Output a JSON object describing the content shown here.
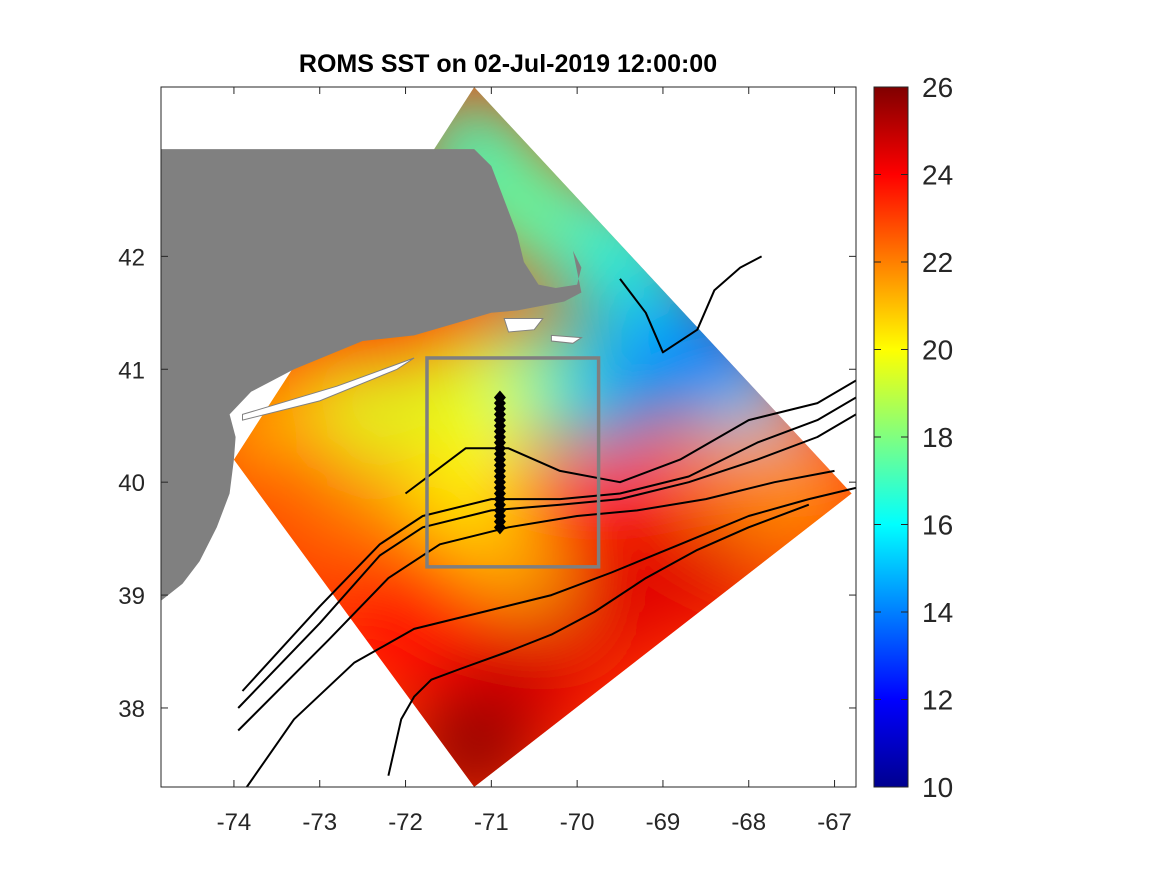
{
  "chart_data": {
    "type": "heatmap",
    "title": "ROMS SST on 02-Jul-2019 12:00:00",
    "xlabel": "",
    "ylabel": "",
    "xlim": [
      -74.85,
      -66.75
    ],
    "ylim": [
      37.3,
      43.5
    ],
    "x_ticks": [
      -74,
      -73,
      -72,
      -71,
      -70,
      -69,
      -68,
      -67
    ],
    "y_ticks": [
      38,
      39,
      40,
      41,
      42
    ],
    "colorbar": {
      "ticks": [
        10,
        12,
        14,
        16,
        18,
        20,
        22,
        24,
        26
      ],
      "range": [
        10,
        26
      ],
      "colormap": "jet"
    },
    "domain_corners": [
      [
        -74.0,
        40.2
      ],
      [
        -71.2,
        43.5
      ],
      [
        -66.8,
        39.9
      ],
      [
        -71.2,
        37.3
      ]
    ],
    "sst_samples": [
      {
        "lon": -71.2,
        "lat": 42.9,
        "sst": 17
      },
      {
        "lon": -70.5,
        "lat": 42.4,
        "sst": 17.5
      },
      {
        "lon": -69.5,
        "lat": 42.0,
        "sst": 16.5
      },
      {
        "lon": -69.0,
        "lat": 41.3,
        "sst": 15
      },
      {
        "lon": -68.3,
        "lat": 41.0,
        "sst": 13.5
      },
      {
        "lon": -69.7,
        "lat": 40.8,
        "sst": 14.5
      },
      {
        "lon": -68.0,
        "lat": 40.4,
        "sst": 15.5
      },
      {
        "lon": -70.6,
        "lat": 40.9,
        "sst": 17
      },
      {
        "lon": -71.3,
        "lat": 40.8,
        "sst": 19.5
      },
      {
        "lon": -72.6,
        "lat": 40.6,
        "sst": 19.5
      },
      {
        "lon": -73.5,
        "lat": 40.4,
        "sst": 21
      },
      {
        "lon": -73.3,
        "lat": 39.9,
        "sst": 22.5
      },
      {
        "lon": -72.2,
        "lat": 39.6,
        "sst": 22
      },
      {
        "lon": -71.2,
        "lat": 40.0,
        "sst": 20
      },
      {
        "lon": -70.9,
        "lat": 39.5,
        "sst": 20.5
      },
      {
        "lon": -70.2,
        "lat": 39.5,
        "sst": 23.5
      },
      {
        "lon": -69.5,
        "lat": 39.7,
        "sst": 24
      },
      {
        "lon": -68.5,
        "lat": 39.8,
        "sst": 23
      },
      {
        "lon": -67.5,
        "lat": 39.9,
        "sst": 21.5
      },
      {
        "lon": -70.9,
        "lat": 39.1,
        "sst": 21
      },
      {
        "lon": -72.0,
        "lat": 38.9,
        "sst": 24
      },
      {
        "lon": -69.5,
        "lat": 39.0,
        "sst": 24.5
      },
      {
        "lon": -68.5,
        "lat": 39.3,
        "sst": 24.5
      },
      {
        "lon": -71.0,
        "lat": 38.5,
        "sst": 24
      },
      {
        "lon": -70.5,
        "lat": 38.3,
        "sst": 24.5
      },
      {
        "lon": -71.2,
        "lat": 37.7,
        "sst": 25.8
      },
      {
        "lon": -68.0,
        "lat": 40.0,
        "sst": 22
      }
    ],
    "box": {
      "lon": [
        -71.75,
        -69.75
      ],
      "lat": [
        39.25,
        41.1
      ]
    },
    "transect": {
      "lon": -70.9,
      "lat": [
        39.6,
        40.75
      ],
      "count": 24
    },
    "coastline": [
      [
        -74.85,
        42.95
      ],
      [
        -71.2,
        42.95
      ],
      [
        -71.0,
        42.8
      ],
      [
        -70.85,
        42.5
      ],
      [
        -70.7,
        42.2
      ],
      [
        -70.62,
        41.95
      ],
      [
        -70.45,
        41.75
      ],
      [
        -70.25,
        41.72
      ],
      [
        -70.0,
        41.75
      ],
      [
        -69.95,
        41.9
      ],
      [
        -70.05,
        42.05
      ],
      [
        -69.95,
        41.68
      ],
      [
        -70.15,
        41.6
      ],
      [
        -70.5,
        41.55
      ],
      [
        -70.7,
        41.52
      ],
      [
        -71.0,
        41.5
      ],
      [
        -71.45,
        41.4
      ],
      [
        -71.9,
        41.3
      ],
      [
        -72.5,
        41.25
      ],
      [
        -73.3,
        41.0
      ],
      [
        -73.8,
        40.8
      ],
      [
        -74.05,
        40.6
      ],
      [
        -73.98,
        40.4
      ],
      [
        -74.0,
        40.2
      ],
      [
        -74.05,
        39.9
      ],
      [
        -74.2,
        39.6
      ],
      [
        -74.4,
        39.3
      ],
      [
        -74.6,
        39.1
      ],
      [
        -74.85,
        38.95
      ]
    ],
    "islands": [
      [
        [
          -73.9,
          40.6
        ],
        [
          -72.8,
          40.85
        ],
        [
          -71.9,
          41.1
        ],
        [
          -72.1,
          41.0
        ],
        [
          -73.0,
          40.72
        ],
        [
          -73.9,
          40.55
        ]
      ],
      [
        [
          -70.85,
          41.45
        ],
        [
          -70.4,
          41.45
        ],
        [
          -70.5,
          41.35
        ],
        [
          -70.8,
          41.33
        ]
      ],
      [
        [
          -70.3,
          41.3
        ],
        [
          -69.95,
          41.28
        ],
        [
          -70.05,
          41.23
        ],
        [
          -70.3,
          41.25
        ]
      ]
    ],
    "contours": [
      [
        [
          -69.5,
          41.8
        ],
        [
          -69.2,
          41.5
        ],
        [
          -69.0,
          41.15
        ],
        [
          -68.6,
          41.35
        ],
        [
          -68.4,
          41.7
        ],
        [
          -68.1,
          41.9
        ],
        [
          -67.85,
          42.0
        ]
      ],
      [
        [
          -72.0,
          39.9
        ],
        [
          -71.3,
          40.3
        ],
        [
          -70.8,
          40.3
        ],
        [
          -70.2,
          40.1
        ],
        [
          -69.5,
          40.0
        ],
        [
          -68.8,
          40.2
        ],
        [
          -68.0,
          40.55
        ],
        [
          -67.2,
          40.7
        ],
        [
          -66.75,
          40.9
        ]
      ],
      [
        [
          -73.9,
          38.15
        ],
        [
          -73.0,
          38.9
        ],
        [
          -72.3,
          39.45
        ],
        [
          -71.8,
          39.7
        ],
        [
          -71.0,
          39.85
        ],
        [
          -70.2,
          39.85
        ],
        [
          -69.5,
          39.9
        ],
        [
          -68.7,
          40.05
        ],
        [
          -67.9,
          40.35
        ],
        [
          -67.2,
          40.55
        ],
        [
          -66.75,
          40.75
        ]
      ],
      [
        [
          -73.95,
          38.0
        ],
        [
          -73.0,
          38.75
        ],
        [
          -72.3,
          39.35
        ],
        [
          -71.8,
          39.6
        ],
        [
          -71.0,
          39.75
        ],
        [
          -70.2,
          39.8
        ],
        [
          -69.5,
          39.85
        ],
        [
          -68.7,
          40.0
        ],
        [
          -67.9,
          40.2
        ],
        [
          -67.2,
          40.4
        ],
        [
          -66.75,
          40.6
        ]
      ],
      [
        [
          -73.95,
          37.8
        ],
        [
          -72.9,
          38.6
        ],
        [
          -72.2,
          39.15
        ],
        [
          -71.6,
          39.45
        ],
        [
          -70.8,
          39.6
        ],
        [
          -70.0,
          39.7
        ],
        [
          -69.3,
          39.75
        ],
        [
          -68.5,
          39.85
        ],
        [
          -67.7,
          40.0
        ],
        [
          -67.0,
          40.1
        ]
      ],
      [
        [
          -73.85,
          37.3
        ],
        [
          -73.3,
          37.9
        ],
        [
          -72.6,
          38.4
        ],
        [
          -71.9,
          38.7
        ],
        [
          -71.1,
          38.85
        ],
        [
          -70.3,
          39.0
        ],
        [
          -69.6,
          39.2
        ],
        [
          -68.8,
          39.45
        ],
        [
          -68.0,
          39.7
        ],
        [
          -67.3,
          39.85
        ],
        [
          -66.75,
          39.95
        ]
      ],
      [
        [
          -72.2,
          37.4
        ],
        [
          -72.05,
          37.9
        ],
        [
          -71.9,
          38.1
        ],
        [
          -71.7,
          38.25
        ],
        [
          -71.35,
          38.35
        ],
        [
          -70.8,
          38.5
        ],
        [
          -70.3,
          38.65
        ],
        [
          -69.8,
          38.85
        ],
        [
          -69.2,
          39.15
        ],
        [
          -68.6,
          39.4
        ],
        [
          -68.0,
          39.6
        ],
        [
          -67.3,
          39.8
        ]
      ]
    ]
  }
}
